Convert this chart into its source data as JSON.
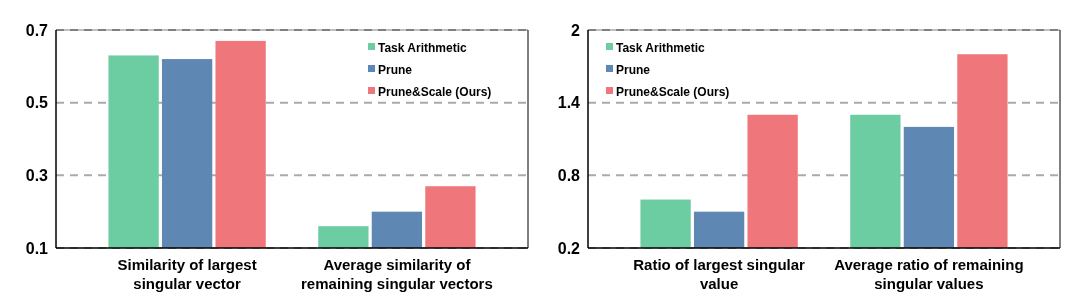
{
  "chart_data": [
    {
      "type": "bar",
      "categories": [
        "Similarity of largest singular vector",
        "Average similarity of remaining singular vectors"
      ],
      "series": [
        {
          "name": "Task Arithmetic",
          "color": "#6ccda3",
          "values": [
            0.63,
            0.16
          ]
        },
        {
          "name": "Prune",
          "color": "#5f87b4",
          "values": [
            0.62,
            0.2
          ]
        },
        {
          "name": "Prune&Scale (Ours)",
          "color": "#ef777b",
          "values": [
            0.67,
            0.27
          ]
        }
      ],
      "ylim": [
        0.1,
        0.7
      ],
      "yticks": [
        0.1,
        0.3,
        0.5,
        0.7
      ],
      "grid": "y",
      "legend": "top right"
    },
    {
      "type": "bar",
      "categories": [
        "Ratio of largest singular value",
        "Average ratio of remaining singular values"
      ],
      "series": [
        {
          "name": "Task Arithmetic",
          "color": "#6ccda3",
          "values": [
            0.6,
            1.3
          ]
        },
        {
          "name": "Prune",
          "color": "#5f87b4",
          "values": [
            0.5,
            1.2
          ]
        },
        {
          "name": "Prune&Scale (Ours)",
          "color": "#ef777b",
          "values": [
            1.3,
            1.8
          ]
        }
      ],
      "ylim": [
        0.2,
        2
      ],
      "yticks": [
        0.2,
        0.8,
        1.4,
        2
      ],
      "grid": "y",
      "legend": "top left"
    }
  ]
}
